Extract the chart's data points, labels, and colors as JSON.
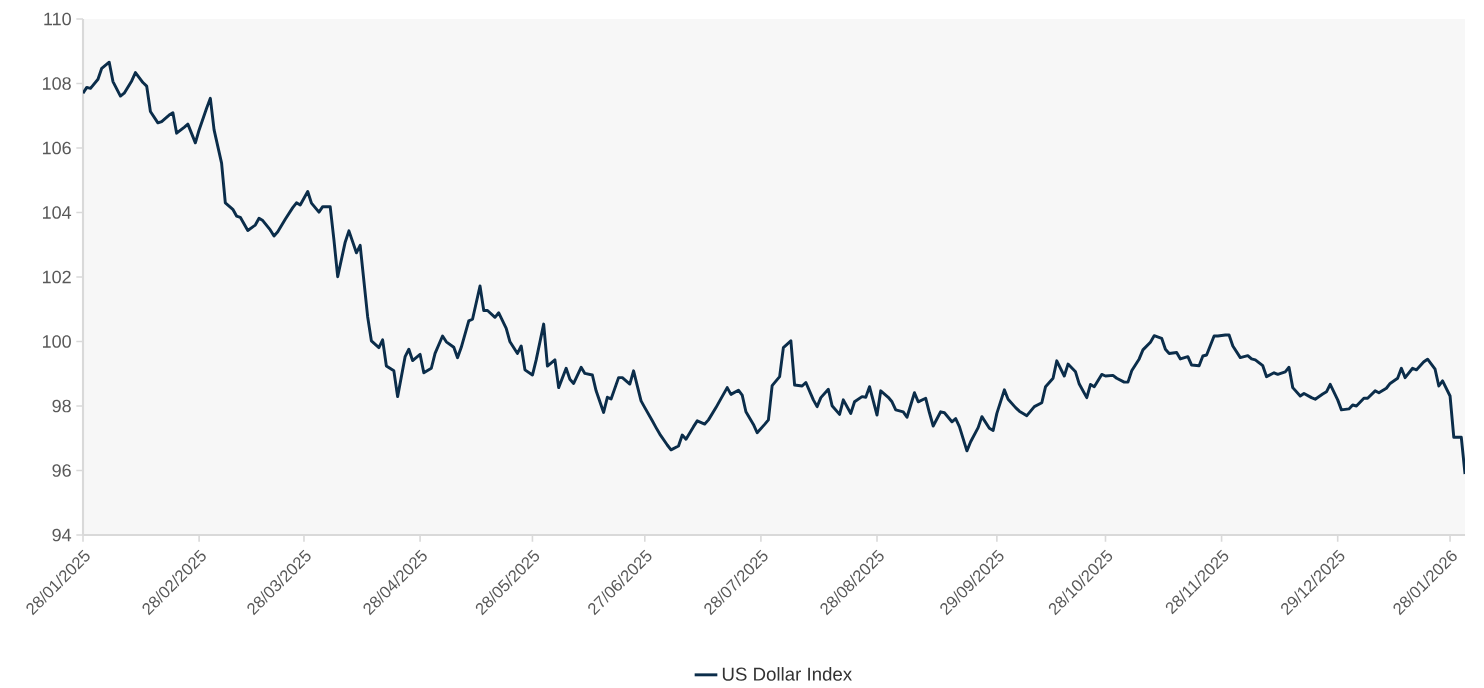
{
  "chart_data": {
    "type": "line",
    "x": [
      "2025-01-28",
      "2025-01-29",
      "2025-01-30",
      "2025-02-01",
      "2025-02-02",
      "2025-02-04",
      "2025-02-05",
      "2025-02-07",
      "2025-02-08",
      "2025-02-10",
      "2025-02-11",
      "2025-02-13",
      "2025-02-14",
      "2025-02-15",
      "2025-02-17",
      "2025-02-18",
      "2025-02-20",
      "2025-02-21",
      "2025-02-22",
      "2025-02-24",
      "2025-02-25",
      "2025-02-27",
      "2025-02-28",
      "2025-03-02",
      "2025-03-03",
      "2025-03-04",
      "2025-03-06",
      "2025-03-07",
      "2025-03-09",
      "2025-03-10",
      "2025-03-11",
      "2025-03-13",
      "2025-03-15",
      "2025-03-16",
      "2025-03-17",
      "2025-03-19",
      "2025-03-20",
      "2025-03-21",
      "2025-03-23",
      "2025-03-25",
      "2025-03-26",
      "2025-03-27",
      "2025-03-29",
      "2025-03-30",
      "2025-04-01",
      "2025-04-02",
      "2025-04-04",
      "2025-04-05",
      "2025-04-06",
      "2025-04-08",
      "2025-04-09",
      "2025-04-11",
      "2025-04-12",
      "2025-04-14",
      "2025-04-15",
      "2025-04-17",
      "2025-04-18",
      "2025-04-19",
      "2025-04-21",
      "2025-04-22",
      "2025-04-24",
      "2025-04-25",
      "2025-04-26",
      "2025-04-28",
      "2025-04-29",
      "2025-05-01",
      "2025-05-02",
      "2025-05-04",
      "2025-05-05",
      "2025-05-07",
      "2025-05-08",
      "2025-05-09",
      "2025-05-11",
      "2025-05-12",
      "2025-05-14",
      "2025-05-15",
      "2025-05-16",
      "2025-05-18",
      "2025-05-19",
      "2025-05-21",
      "2025-05-22",
      "2025-05-24",
      "2025-05-25",
      "2025-05-26",
      "2025-05-28",
      "2025-05-29",
      "2025-05-31",
      "2025-06-01",
      "2025-06-03",
      "2025-06-04",
      "2025-06-06",
      "2025-06-07",
      "2025-06-08",
      "2025-06-10",
      "2025-06-11",
      "2025-06-13",
      "2025-06-14",
      "2025-06-16",
      "2025-06-17",
      "2025-06-18",
      "2025-06-20",
      "2025-06-21",
      "2025-06-23",
      "2025-06-24",
      "2025-06-26",
      "2025-06-27",
      "2025-06-29",
      "2025-06-30",
      "2025-07-01",
      "2025-07-03",
      "2025-07-04",
      "2025-07-06",
      "2025-07-07",
      "2025-07-08",
      "2025-07-10",
      "2025-07-11",
      "2025-07-13",
      "2025-07-14",
      "2025-07-16",
      "2025-07-17",
      "2025-07-19",
      "2025-07-20",
      "2025-07-22",
      "2025-07-23",
      "2025-07-24",
      "2025-07-26",
      "2025-07-27",
      "2025-07-29",
      "2025-07-30",
      "2025-07-31",
      "2025-08-02",
      "2025-08-03",
      "2025-08-05",
      "2025-08-06",
      "2025-08-08",
      "2025-08-09",
      "2025-08-11",
      "2025-08-12",
      "2025-08-13",
      "2025-08-15",
      "2025-08-16",
      "2025-08-18",
      "2025-08-19",
      "2025-08-21",
      "2025-08-22",
      "2025-08-24",
      "2025-08-25",
      "2025-08-26",
      "2025-08-28",
      "2025-08-29",
      "2025-08-31",
      "2025-09-01",
      "2025-09-02",
      "2025-09-04",
      "2025-09-05",
      "2025-09-07",
      "2025-09-08",
      "2025-09-10",
      "2025-09-11",
      "2025-09-12",
      "2025-09-14",
      "2025-09-15",
      "2025-09-17",
      "2025-09-18",
      "2025-09-19",
      "2025-09-21",
      "2025-09-22",
      "2025-09-24",
      "2025-09-25",
      "2025-09-27",
      "2025-09-28",
      "2025-09-29",
      "2025-10-01",
      "2025-10-02",
      "2025-10-04",
      "2025-10-05",
      "2025-10-07",
      "2025-10-08",
      "2025-10-09",
      "2025-10-11",
      "2025-10-12",
      "2025-10-14",
      "2025-10-15",
      "2025-10-17",
      "2025-10-18",
      "2025-10-20",
      "2025-10-21",
      "2025-10-23",
      "2025-10-24",
      "2025-10-25",
      "2025-10-27",
      "2025-10-28",
      "2025-10-30",
      "2025-10-31",
      "2025-11-02",
      "2025-11-03",
      "2025-11-04",
      "2025-11-06",
      "2025-11-07",
      "2025-11-09",
      "2025-11-10",
      "2025-11-12",
      "2025-11-13",
      "2025-11-14",
      "2025-11-16",
      "2025-11-17",
      "2025-11-19",
      "2025-11-20",
      "2025-11-22",
      "2025-11-23",
      "2025-11-24",
      "2025-11-26",
      "2025-11-27",
      "2025-11-29",
      "2025-11-30",
      "2025-12-01",
      "2025-12-03",
      "2025-12-05",
      "2025-12-06",
      "2025-12-07",
      "2025-12-09",
      "2025-12-10",
      "2025-12-12",
      "2025-12-13",
      "2025-12-15",
      "2025-12-16",
      "2025-12-17",
      "2025-12-19",
      "2025-12-20",
      "2025-12-22",
      "2025-12-23",
      "2025-12-25",
      "2025-12-26",
      "2025-12-27",
      "2025-12-29",
      "2025-12-30",
      "2026-01-01",
      "2026-01-02",
      "2026-01-03",
      "2026-01-05",
      "2026-01-06",
      "2026-01-08",
      "2026-01-09",
      "2026-01-11",
      "2026-01-12",
      "2026-01-14",
      "2026-01-15",
      "2026-01-16",
      "2026-01-18",
      "2026-01-19",
      "2026-01-21",
      "2026-01-22",
      "2026-01-24",
      "2026-01-25",
      "2026-01-26",
      "2026-01-28",
      "2026-01-29",
      "2026-01-31",
      "2026-02-01"
    ],
    "series": [
      {
        "name": "US Dollar Index",
        "color": "#0b2d4a",
        "values": [
          107.7,
          107.88,
          107.85,
          108.13,
          108.47,
          108.66,
          108.06,
          107.61,
          107.7,
          108.08,
          108.34,
          108.03,
          107.92,
          107.13,
          106.78,
          106.82,
          107.02,
          107.09,
          106.46,
          106.64,
          106.74,
          106.16,
          106.56,
          107.23,
          107.54,
          106.56,
          105.53,
          104.3,
          104.1,
          103.89,
          103.85,
          103.44,
          103.61,
          103.82,
          103.75,
          103.46,
          103.27,
          103.4,
          103.79,
          104.15,
          104.3,
          104.23,
          104.65,
          104.29,
          104.01,
          104.18,
          104.18,
          103.15,
          102.01,
          103.08,
          103.43,
          102.75,
          102.98,
          100.77,
          100.02,
          99.81,
          100.05,
          99.24,
          99.09,
          98.29,
          99.53,
          99.76,
          99.41,
          99.6,
          99.03,
          99.17,
          99.63,
          100.17,
          99.99,
          99.82,
          99.5,
          99.82,
          100.64,
          100.69,
          101.72,
          100.96,
          100.96,
          100.75,
          100.89,
          100.41,
          99.99,
          99.63,
          99.86,
          99.12,
          98.96,
          99.43,
          100.54,
          99.24,
          99.43,
          98.57,
          99.17,
          98.83,
          98.7,
          99.2,
          99.01,
          98.96,
          98.47,
          97.8,
          98.27,
          98.22,
          98.88,
          98.88,
          98.68,
          99.09,
          98.16,
          97.95,
          97.54,
          97.33,
          97.13,
          96.79,
          96.64,
          96.76,
          97.1,
          96.97,
          97.36,
          97.54,
          97.44,
          97.57,
          97.95,
          98.16,
          98.57,
          98.36,
          98.49,
          98.34,
          97.82,
          97.43,
          97.17,
          97.43,
          97.57,
          98.63,
          98.91,
          99.81,
          100.02,
          98.65,
          98.62,
          98.73,
          98.19,
          97.98,
          98.26,
          98.52,
          98.01,
          97.74,
          98.19,
          97.77,
          98.13,
          98.29,
          98.27,
          98.6,
          97.72,
          98.47,
          98.27,
          98.13,
          97.88,
          97.82,
          97.65,
          98.41,
          98.13,
          98.24,
          97.79,
          97.38,
          97.82,
          97.79,
          97.51,
          97.61,
          97.36,
          96.61,
          96.89,
          97.33,
          97.67,
          97.31,
          97.24,
          97.77,
          98.5,
          98.21,
          97.95,
          97.84,
          97.7,
          97.84,
          97.98,
          98.1,
          98.6,
          98.86,
          99.4,
          98.93,
          99.3,
          99.06,
          98.68,
          98.26,
          98.67,
          98.6,
          98.98,
          98.93,
          98.95,
          98.86,
          98.74,
          98.74,
          99.09,
          99.46,
          99.74,
          99.98,
          100.18,
          100.1,
          99.76,
          99.63,
          99.66,
          99.46,
          99.53,
          99.27,
          99.25,
          99.55,
          99.58,
          100.17,
          100.17,
          100.2,
          100.2,
          99.86,
          99.5,
          99.56,
          99.46,
          99.43,
          99.25,
          98.91,
          99.03,
          98.98,
          99.06,
          99.2,
          98.57,
          98.31,
          98.39,
          98.26,
          98.21,
          98.37,
          98.44,
          98.67,
          98.19,
          97.88,
          97.91,
          98.03,
          98.0,
          98.24,
          98.24,
          98.47,
          98.41,
          98.55,
          98.7,
          98.86,
          99.17,
          98.88,
          99.17,
          99.12,
          99.37,
          99.45,
          99.14,
          98.62,
          98.78,
          98.31,
          97.03,
          97.03,
          95.89
        ]
      }
    ],
    "xlim": [
      "2025-01-28",
      "2026-02-01"
    ],
    "xticks": [
      {
        "value": "2025-01-28",
        "label": "28/01/2025"
      },
      {
        "value": "2025-02-28",
        "label": "28/02/2025"
      },
      {
        "value": "2025-03-28",
        "label": "28/03/2025"
      },
      {
        "value": "2025-04-28",
        "label": "28/04/2025"
      },
      {
        "value": "2025-05-28",
        "label": "28/05/2025"
      },
      {
        "value": "2025-06-27",
        "label": "27/06/2025"
      },
      {
        "value": "2025-07-28",
        "label": "28/07/2025"
      },
      {
        "value": "2025-08-28",
        "label": "28/08/2025"
      },
      {
        "value": "2025-09-29",
        "label": "29/09/2025"
      },
      {
        "value": "2025-10-28",
        "label": "28/10/2025"
      },
      {
        "value": "2025-11-28",
        "label": "28/11/2025"
      },
      {
        "value": "2025-12-29",
        "label": "29/12/2025"
      },
      {
        "value": "2026-01-28",
        "label": "28/01/2026"
      }
    ],
    "ylim": [
      94,
      110
    ],
    "yticks": [
      94,
      96,
      98,
      100,
      102,
      104,
      106,
      108,
      110
    ],
    "legend": "bottom",
    "grid": false,
    "marker": "none",
    "line_style": "solid"
  }
}
